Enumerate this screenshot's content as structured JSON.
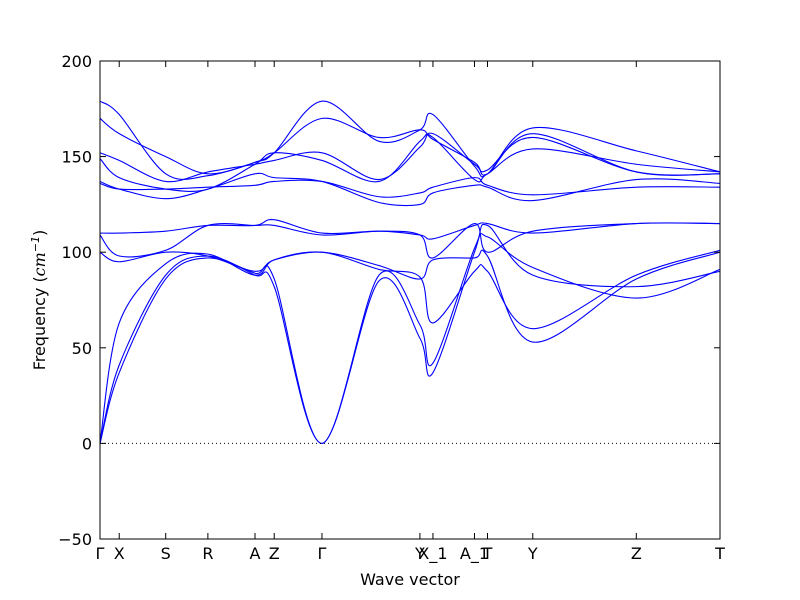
{
  "chart_data": {
    "type": "line",
    "xlabel": "Wave vector",
    "ylabel": "Frequency",
    "ylabel_unit": "cm",
    "ylabel_unit_exp": "−1",
    "ylim": [
      -50,
      200
    ],
    "yticks": [
      -50,
      0,
      50,
      100,
      150,
      200
    ],
    "xlim": [
      0,
      1
    ],
    "zero_line": true,
    "line_color": "#0000ff",
    "high_symmetry_points": [
      {
        "label": "Γ",
        "x": 0.0
      },
      {
        "label": "X",
        "x": 0.031
      },
      {
        "label": "S",
        "x": 0.106
      },
      {
        "label": "R",
        "x": 0.174
      },
      {
        "label": "A",
        "x": 0.25
      },
      {
        "label": "Z",
        "x": 0.281
      },
      {
        "label": "Γ",
        "x": 0.358
      },
      {
        "label": "Y",
        "x": 0.516
      },
      {
        "label": "X_1",
        "x": 0.537
      },
      {
        "label": "A_1",
        "x": 0.604
      },
      {
        "label": "T",
        "x": 0.625
      },
      {
        "label": "Y",
        "x": 0.698
      },
      {
        "label": "Z",
        "x": 0.865
      },
      {
        "label": "T",
        "x": 1.0
      }
    ],
    "series": [
      {
        "x": [
          0,
          0.031,
          0.106,
          0.174,
          0.25,
          0.281,
          0.358,
          0.45,
          0.516,
          0.537,
          0.604,
          0.625,
          0.698,
          0.865,
          1.0
        ],
        "y": [
          0,
          41,
          88,
          98,
          88,
          82,
          0,
          85,
          55,
          37,
          100,
          114,
          88,
          82,
          90
        ]
      },
      {
        "x": [
          0,
          0.031,
          0.106,
          0.174,
          0.25,
          0.281,
          0.358,
          0.45,
          0.516,
          0.537,
          0.604,
          0.625,
          0.698,
          0.865,
          1.0
        ],
        "y": [
          0,
          37,
          86,
          97,
          89,
          86,
          0,
          88,
          62,
          42,
          102,
          108,
          92,
          76,
          91
        ]
      },
      {
        "x": [
          0,
          0.031,
          0.106,
          0.174,
          0.25,
          0.281,
          0.358,
          0.45,
          0.516,
          0.537,
          0.604,
          0.625,
          0.698,
          0.865,
          1.0
        ],
        "y": [
          0,
          63,
          94,
          99,
          88,
          96,
          100,
          91,
          87,
          63,
          90,
          90,
          60,
          88,
          101
        ]
      },
      {
        "x": [
          0,
          0.031,
          0.106,
          0.174,
          0.25,
          0.281,
          0.358,
          0.45,
          0.516,
          0.537,
          0.604,
          0.625,
          0.698,
          0.865,
          1.0
        ],
        "y": [
          100,
          95,
          100,
          98,
          90,
          96,
          100,
          93,
          86,
          96,
          97,
          98,
          53,
          86,
          100
        ]
      },
      {
        "x": [
          0,
          0.031,
          0.106,
          0.174,
          0.25,
          0.281,
          0.358,
          0.45,
          0.516,
          0.537,
          0.604,
          0.625,
          0.698,
          0.865,
          1.0
        ],
        "y": [
          109,
          98,
          101,
          114,
          114,
          114,
          109,
          111,
          109,
          97,
          115,
          100,
          111,
          115,
          115
        ]
      },
      {
        "x": [
          0,
          0.031,
          0.106,
          0.174,
          0.25,
          0.281,
          0.358,
          0.45,
          0.516,
          0.537,
          0.604,
          0.625,
          0.698,
          0.865,
          1.0
        ],
        "y": [
          110,
          110,
          111,
          114,
          114,
          117,
          110,
          111,
          109,
          107,
          114,
          115,
          110,
          115,
          115
        ]
      },
      {
        "x": [
          0,
          0.031,
          0.106,
          0.174,
          0.25,
          0.281,
          0.358,
          0.45,
          0.516,
          0.537,
          0.604,
          0.625,
          0.698,
          0.865,
          1.0
        ],
        "y": [
          137,
          133,
          128,
          133,
          141,
          139,
          137,
          126,
          125,
          131,
          135,
          134,
          127,
          138,
          136
        ]
      },
      {
        "x": [
          0,
          0.031,
          0.106,
          0.174,
          0.25,
          0.281,
          0.358,
          0.45,
          0.516,
          0.537,
          0.604,
          0.625,
          0.698,
          0.865,
          1.0
        ],
        "y": [
          136,
          133,
          133,
          134,
          135,
          137,
          137,
          129,
          131,
          134,
          139,
          135,
          130,
          134,
          134
        ]
      },
      {
        "x": [
          0,
          0.031,
          0.106,
          0.174,
          0.25,
          0.281,
          0.358,
          0.45,
          0.516,
          0.537,
          0.604,
          0.625,
          0.698,
          0.865,
          1.0
        ],
        "y": [
          149,
          139,
          133,
          133,
          146,
          152,
          148,
          137,
          158,
          160,
          138,
          141,
          154,
          146,
          142
        ]
      },
      {
        "x": [
          0,
          0.031,
          0.106,
          0.174,
          0.25,
          0.281,
          0.358,
          0.45,
          0.516,
          0.537,
          0.604,
          0.625,
          0.698,
          0.865,
          1.0
        ],
        "y": [
          152,
          148,
          137,
          142,
          146,
          148,
          152,
          138,
          155,
          162,
          146,
          143,
          160,
          142,
          141
        ]
      },
      {
        "x": [
          0,
          0.031,
          0.106,
          0.174,
          0.25,
          0.281,
          0.358,
          0.45,
          0.516,
          0.537,
          0.604,
          0.625,
          0.698,
          0.865,
          1.0
        ],
        "y": [
          170,
          162,
          150,
          141,
          147,
          152,
          170,
          160,
          164,
          159,
          147,
          141,
          162,
          142,
          141
        ]
      },
      {
        "x": [
          0,
          0.031,
          0.106,
          0.174,
          0.25,
          0.281,
          0.358,
          0.45,
          0.516,
          0.537,
          0.604,
          0.625,
          0.698,
          0.865,
          1.0
        ],
        "y": [
          179,
          172,
          141,
          140,
          147,
          152,
          179,
          158,
          164,
          172,
          145,
          141,
          165,
          153,
          142
        ]
      }
    ]
  }
}
